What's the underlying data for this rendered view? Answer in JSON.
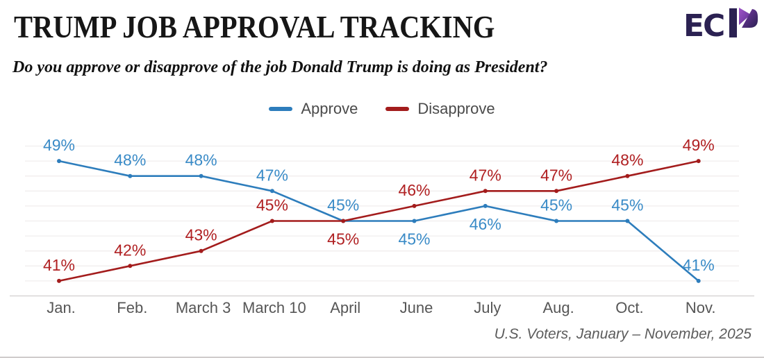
{
  "header": {
    "title": "TRUMP JOB APPROVAL TRACKING",
    "subtitle": "Do you approve or disapprove of the job Donald Trump is doing as President?",
    "logo": {
      "text": "EC",
      "name": "ECP"
    }
  },
  "legend": {
    "items": [
      {
        "label": "Approve",
        "color": "#2d7dbc"
      },
      {
        "label": "Disapprove",
        "color": "#a31c1c"
      }
    ]
  },
  "chart_data": {
    "type": "line",
    "title": "Trump Job Approval Tracking",
    "categories": [
      "Jan.",
      "Feb.",
      "March 3",
      "March 10",
      "April",
      "June",
      "July",
      "Aug.",
      "Oct.",
      "Nov."
    ],
    "series": [
      {
        "name": "Approve",
        "color": "#2d7dbc",
        "label_color": "#3a8bc7",
        "values": [
          49,
          48,
          48,
          47,
          45,
          45,
          46,
          45,
          45,
          41
        ],
        "label_positions": [
          "above",
          "above",
          "above",
          "above",
          "above",
          "below",
          "below",
          "above",
          "above",
          "above"
        ]
      },
      {
        "name": "Disapprove",
        "color": "#a31c1c",
        "label_color": "#b02022",
        "values": [
          41,
          42,
          43,
          45,
          45,
          46,
          47,
          47,
          48,
          49
        ],
        "label_positions": [
          "above",
          "above",
          "above",
          "above",
          "below",
          "above",
          "above",
          "above",
          "above",
          "above"
        ]
      }
    ],
    "value_suffix": "%",
    "ylim": [
      40,
      50
    ],
    "xlabel": "",
    "ylabel": "",
    "grid": true,
    "legend_position": "top"
  },
  "footer": {
    "source": "U.S. Voters, January – November, 2025"
  }
}
